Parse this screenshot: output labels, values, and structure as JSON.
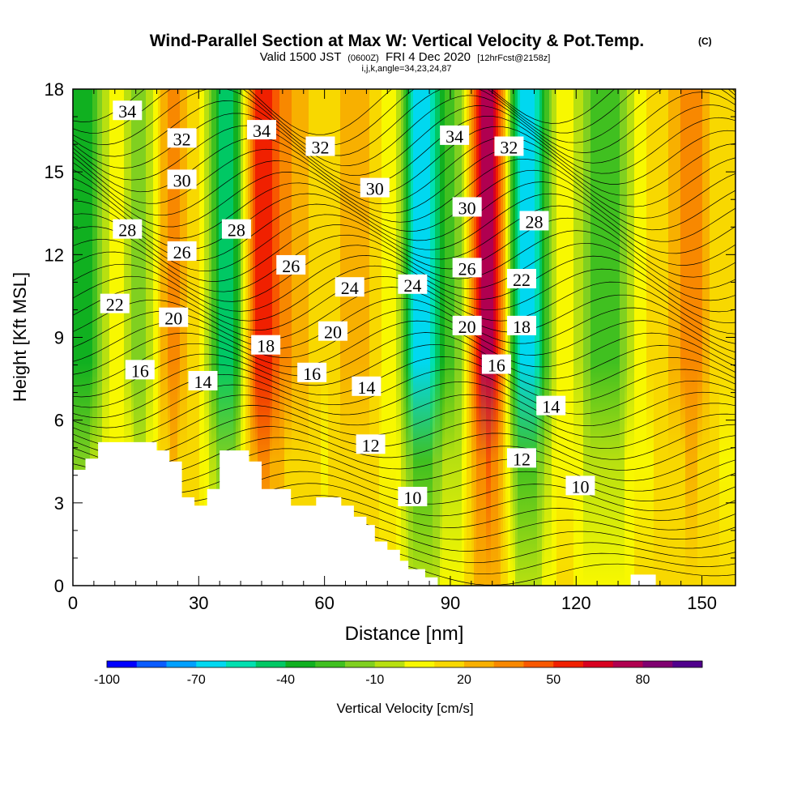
{
  "chart_data": {
    "type": "heatmap",
    "title": "Wind-Parallel Section at Max W: Vertical Velocity & Pot.Temp.",
    "title_mark": "(C)",
    "subtitle_main": "Valid 1500 JST",
    "subtitle_z": "(0600Z)",
    "subtitle_date": "FRI 4 Dec 2020",
    "subtitle_fcst": "[12hrFcst@2158z]",
    "subtitle2": "i,j,k,angle=34,23,24,87",
    "xlabel": "Distance [nm]",
    "ylabel": "Height [Kft MSL]",
    "xlim": [
      0,
      158
    ],
    "ylim": [
      0,
      18
    ],
    "x_ticks": [
      "0",
      "30",
      "60",
      "90",
      "120",
      "150"
    ],
    "y_ticks": [
      "0",
      "3",
      "6",
      "9",
      "12",
      "15",
      "18"
    ],
    "colorbar": {
      "label": "Vertical Velocity [cm/s]",
      "tick_labels": [
        "-100",
        "-70",
        "-40",
        "-10",
        "20",
        "50",
        "80"
      ],
      "colors": [
        "#0000ff",
        "#0a5cff",
        "#00a0ff",
        "#00d8f0",
        "#00e0b0",
        "#00c864",
        "#10b020",
        "#40c020",
        "#80d020",
        "#b8e010",
        "#f8f800",
        "#f8d800",
        "#f8b000",
        "#f88800",
        "#f85800",
        "#f02000",
        "#d80020",
        "#b00050",
        "#800070",
        "#50008c"
      ]
    },
    "velocity_columns": [
      {
        "x": 3,
        "w": -35
      },
      {
        "x": 10,
        "w": 5
      },
      {
        "x": 16,
        "w": -15
      },
      {
        "x": 24,
        "w": 35
      },
      {
        "x": 29,
        "w": 15
      },
      {
        "x": 37,
        "w": -50
      },
      {
        "x": 45,
        "w": 60
      },
      {
        "x": 52,
        "w": 30
      },
      {
        "x": 60,
        "w": 10
      },
      {
        "x": 67,
        "w": 30
      },
      {
        "x": 76,
        "w": 5
      },
      {
        "x": 83,
        "w": -70
      },
      {
        "x": 91,
        "w": -20
      },
      {
        "x": 99,
        "w": 80
      },
      {
        "x": 108,
        "w": -70
      },
      {
        "x": 117,
        "w": 5
      },
      {
        "x": 127,
        "w": -30
      },
      {
        "x": 137,
        "w": 10
      },
      {
        "x": 148,
        "w": 35
      },
      {
        "x": 155,
        "w": 10
      }
    ],
    "isentrope_labels": [
      {
        "text": "34",
        "x": 13,
        "y": 17.2
      },
      {
        "text": "32",
        "x": 26,
        "y": 16.2
      },
      {
        "text": "34",
        "x": 45,
        "y": 16.5
      },
      {
        "text": "32",
        "x": 59,
        "y": 15.9
      },
      {
        "text": "34",
        "x": 91,
        "y": 16.3
      },
      {
        "text": "32",
        "x": 104,
        "y": 15.9
      },
      {
        "text": "30",
        "x": 26,
        "y": 14.7
      },
      {
        "text": "30",
        "x": 72,
        "y": 14.4
      },
      {
        "text": "30",
        "x": 94,
        "y": 13.7
      },
      {
        "text": "28",
        "x": 13,
        "y": 12.9
      },
      {
        "text": "28",
        "x": 39,
        "y": 12.9
      },
      {
        "text": "28",
        "x": 110,
        "y": 13.2
      },
      {
        "text": "26",
        "x": 26,
        "y": 12.1
      },
      {
        "text": "26",
        "x": 52,
        "y": 11.6
      },
      {
        "text": "26",
        "x": 94,
        "y": 11.5
      },
      {
        "text": "24",
        "x": 66,
        "y": 10.8
      },
      {
        "text": "24",
        "x": 81,
        "y": 10.9
      },
      {
        "text": "22",
        "x": 10,
        "y": 10.2
      },
      {
        "text": "22",
        "x": 107,
        "y": 11.1
      },
      {
        "text": "20",
        "x": 24,
        "y": 9.7
      },
      {
        "text": "20",
        "x": 62,
        "y": 9.2
      },
      {
        "text": "20",
        "x": 94,
        "y": 9.4
      },
      {
        "text": "18",
        "x": 46,
        "y": 8.7
      },
      {
        "text": "18",
        "x": 107,
        "y": 9.4
      },
      {
        "text": "16",
        "x": 16,
        "y": 7.8
      },
      {
        "text": "16",
        "x": 57,
        "y": 7.7
      },
      {
        "text": "16",
        "x": 101,
        "y": 8.0
      },
      {
        "text": "14",
        "x": 31,
        "y": 7.4
      },
      {
        "text": "14",
        "x": 70,
        "y": 7.2
      },
      {
        "text": "14",
        "x": 114,
        "y": 6.5
      },
      {
        "text": "12",
        "x": 71,
        "y": 5.1
      },
      {
        "text": "12",
        "x": 107,
        "y": 4.6
      },
      {
        "text": "10",
        "x": 81,
        "y": 3.2
      },
      {
        "text": "10",
        "x": 121,
        "y": 3.6
      }
    ],
    "terrain_kft": [
      [
        0,
        4.2
      ],
      [
        3,
        4.2
      ],
      [
        3,
        4.6
      ],
      [
        6,
        4.6
      ],
      [
        6,
        5.2
      ],
      [
        20,
        5.2
      ],
      [
        20,
        4.9
      ],
      [
        23,
        4.9
      ],
      [
        23,
        4.5
      ],
      [
        26,
        4.5
      ],
      [
        26,
        3.2
      ],
      [
        29,
        3.2
      ],
      [
        29,
        2.9
      ],
      [
        32,
        2.9
      ],
      [
        32,
        3.5
      ],
      [
        35,
        3.5
      ],
      [
        35,
        4.9
      ],
      [
        42,
        4.9
      ],
      [
        42,
        4.5
      ],
      [
        45,
        4.5
      ],
      [
        45,
        3.5
      ],
      [
        52,
        3.5
      ],
      [
        52,
        2.9
      ],
      [
        58,
        2.9
      ],
      [
        58,
        3.2
      ],
      [
        64,
        3.2
      ],
      [
        64,
        2.9
      ],
      [
        67,
        2.9
      ],
      [
        67,
        2.5
      ],
      [
        70,
        2.5
      ],
      [
        70,
        2.2
      ],
      [
        72,
        2.2
      ],
      [
        72,
        1.6
      ],
      [
        75,
        1.6
      ],
      [
        75,
        1.3
      ],
      [
        78,
        1.3
      ],
      [
        78,
        0.9
      ],
      [
        80,
        0.9
      ],
      [
        80,
        0.6
      ],
      [
        84,
        0.6
      ],
      [
        84,
        0.3
      ],
      [
        87,
        0.3
      ],
      [
        87,
        0.0
      ],
      [
        133,
        0.0
      ],
      [
        133,
        0.4
      ],
      [
        139,
        0.4
      ],
      [
        139,
        0.0
      ],
      [
        158,
        0.0
      ]
    ]
  }
}
